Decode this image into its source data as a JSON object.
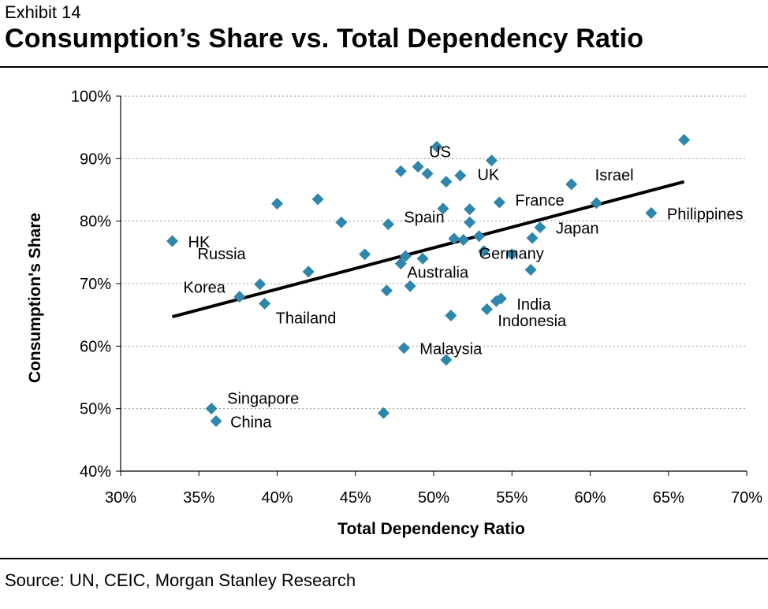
{
  "exhibit_label": "Exhibit 14",
  "title": "Consumption’s Share vs. Total Dependency Ratio",
  "source": "Source: UN, CEIC, Morgan Stanley Research",
  "colors": {
    "marker": "#2E86AB",
    "trend": "#000000",
    "axis": "#000000",
    "grid": "#9a9a9a"
  },
  "chart_data": {
    "type": "scatter",
    "title": "Consumption’s Share vs. Total Dependency Ratio",
    "xlabel": "Total Dependency Ratio",
    "ylabel": "Consumption's Share",
    "xlim": [
      30,
      70
    ],
    "ylim": [
      40,
      100
    ],
    "xticks": [
      "30%",
      "35%",
      "40%",
      "45%",
      "50%",
      "55%",
      "60%",
      "65%",
      "70%"
    ],
    "yticks": [
      "40%",
      "50%",
      "60%",
      "70%",
      "80%",
      "90%",
      "100%"
    ],
    "grid": "horizontal",
    "trendline": {
      "x": [
        33.3,
        66.0
      ],
      "y": [
        64.7,
        86.3
      ]
    },
    "points": [
      {
        "x": 33.3,
        "y": 76.8,
        "label": "HK"
      },
      {
        "x": 37.6,
        "y": 67.9,
        "label": "Korea"
      },
      {
        "x": 38.9,
        "y": 69.9,
        "label": "Russia"
      },
      {
        "x": 39.2,
        "y": 66.8,
        "label": "Thailand"
      },
      {
        "x": 35.8,
        "y": 50.0,
        "label": "Singapore"
      },
      {
        "x": 36.1,
        "y": 48.0,
        "label": "China"
      },
      {
        "x": 40.0,
        "y": 82.8,
        "label": ""
      },
      {
        "x": 42.0,
        "y": 71.9,
        "label": ""
      },
      {
        "x": 42.6,
        "y": 83.5,
        "label": ""
      },
      {
        "x": 44.1,
        "y": 79.8,
        "label": ""
      },
      {
        "x": 45.6,
        "y": 74.7,
        "label": ""
      },
      {
        "x": 46.8,
        "y": 49.3,
        "label": ""
      },
      {
        "x": 47.0,
        "y": 68.9,
        "label": ""
      },
      {
        "x": 47.1,
        "y": 79.5,
        "label": "Spain"
      },
      {
        "x": 47.9,
        "y": 88.0,
        "label": ""
      },
      {
        "x": 47.9,
        "y": 73.2,
        "label": "Australia"
      },
      {
        "x": 48.2,
        "y": 74.4,
        "label": ""
      },
      {
        "x": 48.1,
        "y": 59.7,
        "label": "Malaysia"
      },
      {
        "x": 48.5,
        "y": 69.6,
        "label": ""
      },
      {
        "x": 49.0,
        "y": 88.7,
        "label": "US"
      },
      {
        "x": 49.3,
        "y": 74.0,
        "label": ""
      },
      {
        "x": 49.6,
        "y": 87.6,
        "label": ""
      },
      {
        "x": 50.2,
        "y": 91.9,
        "label": ""
      },
      {
        "x": 50.6,
        "y": 82.0,
        "label": ""
      },
      {
        "x": 50.8,
        "y": 86.3,
        "label": ""
      },
      {
        "x": 50.8,
        "y": 57.8,
        "label": ""
      },
      {
        "x": 51.1,
        "y": 64.9,
        "label": ""
      },
      {
        "x": 51.3,
        "y": 77.2,
        "label": ""
      },
      {
        "x": 51.7,
        "y": 87.3,
        "label": ""
      },
      {
        "x": 51.9,
        "y": 77.0,
        "label": ""
      },
      {
        "x": 52.3,
        "y": 81.9,
        "label": ""
      },
      {
        "x": 52.3,
        "y": 79.8,
        "label": ""
      },
      {
        "x": 52.9,
        "y": 77.6,
        "label": ""
      },
      {
        "x": 53.2,
        "y": 75.2,
        "label": "Germany"
      },
      {
        "x": 53.4,
        "y": 65.9,
        "label": ""
      },
      {
        "x": 53.7,
        "y": 89.7,
        "label": "UK"
      },
      {
        "x": 54.0,
        "y": 67.2,
        "label": "Indonesia"
      },
      {
        "x": 54.3,
        "y": 67.6,
        "label": "India"
      },
      {
        "x": 54.2,
        "y": 83.0,
        "label": "France"
      },
      {
        "x": 55.0,
        "y": 74.7,
        "label": ""
      },
      {
        "x": 56.2,
        "y": 72.2,
        "label": ""
      },
      {
        "x": 56.3,
        "y": 77.3,
        "label": ""
      },
      {
        "x": 56.8,
        "y": 79.0,
        "label": "Japan"
      },
      {
        "x": 58.8,
        "y": 85.9,
        "label": "Israel"
      },
      {
        "x": 60.4,
        "y": 82.9,
        "label": ""
      },
      {
        "x": 63.9,
        "y": 81.3,
        "label": "Philippines"
      },
      {
        "x": 66.0,
        "y": 93.0,
        "label": ""
      }
    ]
  }
}
